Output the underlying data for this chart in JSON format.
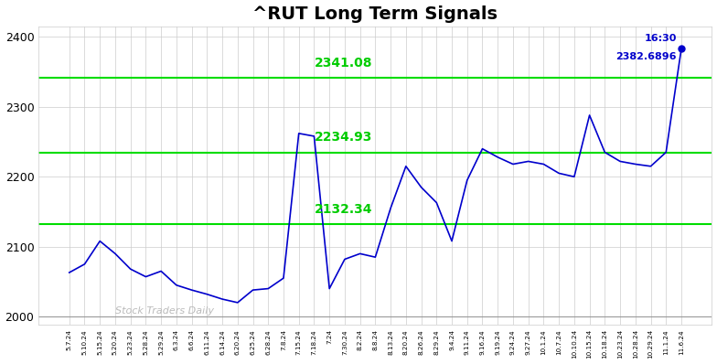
{
  "title": "^RUT Long Term Signals",
  "title_fontsize": 14,
  "title_fontweight": "bold",
  "hlines": [
    2341.08,
    2234.93,
    2132.34
  ],
  "hline_color": "#00dd00",
  "hline_lw": 1.5,
  "line_color": "#0000cc",
  "watermark": "Stock Traders Daily",
  "watermark_color": "#bbbbbb",
  "background_color": "#ffffff",
  "ylabel_values": [
    2000,
    2100,
    2200,
    2300,
    2400
  ],
  "ylim": [
    1988,
    2415
  ],
  "annotation_1630_text": "16:30",
  "annotation_price_text": "2382.6896",
  "annotation_2341": "2341.08",
  "annotation_2234": "2234.93",
  "annotation_2132": "2132.34",
  "ann_color": "#00cc00",
  "ann_fontsize": 10,
  "last_point_color": "#0000cc",
  "last_point_fontsize": 8,
  "y_values": [
    2063,
    2075,
    2108,
    2090,
    2068,
    2057,
    2065,
    2045,
    2038,
    2032,
    2025,
    2020,
    2038,
    2040,
    2055,
    2262,
    2258,
    2040,
    2082,
    2090,
    2085,
    2155,
    2215,
    2185,
    2163,
    2108,
    2195,
    2240,
    2228,
    2218,
    2222,
    2218,
    2205,
    2200,
    2288,
    2235,
    2222,
    2218,
    2215,
    2235,
    2383
  ],
  "xtick_labels": [
    "5.7.24",
    "5.10.24",
    "5.15.24",
    "5.20.24",
    "5.23.24",
    "5.28.24",
    "5.29.24",
    "6.3.24",
    "6.6.24",
    "6.11.24",
    "6.14.24",
    "6.20.24",
    "6.25.24",
    "6.28.24",
    "7.8.24",
    "7.15.24",
    "7.18.24",
    "7.24",
    "7.30.24",
    "8.2.24",
    "8.8.24",
    "8.13.24",
    "8.20.24",
    "8.26.24",
    "8.29.24",
    "9.4.24",
    "9.11.24",
    "9.16.24",
    "9.19.24",
    "9.24.24",
    "9.27.24",
    "10.1.24",
    "10.7.24",
    "10.10.24",
    "10.15.24",
    "10.18.24",
    "10.23.24",
    "10.28.24",
    "10.29.24",
    "11.1.24",
    "11.6.24"
  ]
}
